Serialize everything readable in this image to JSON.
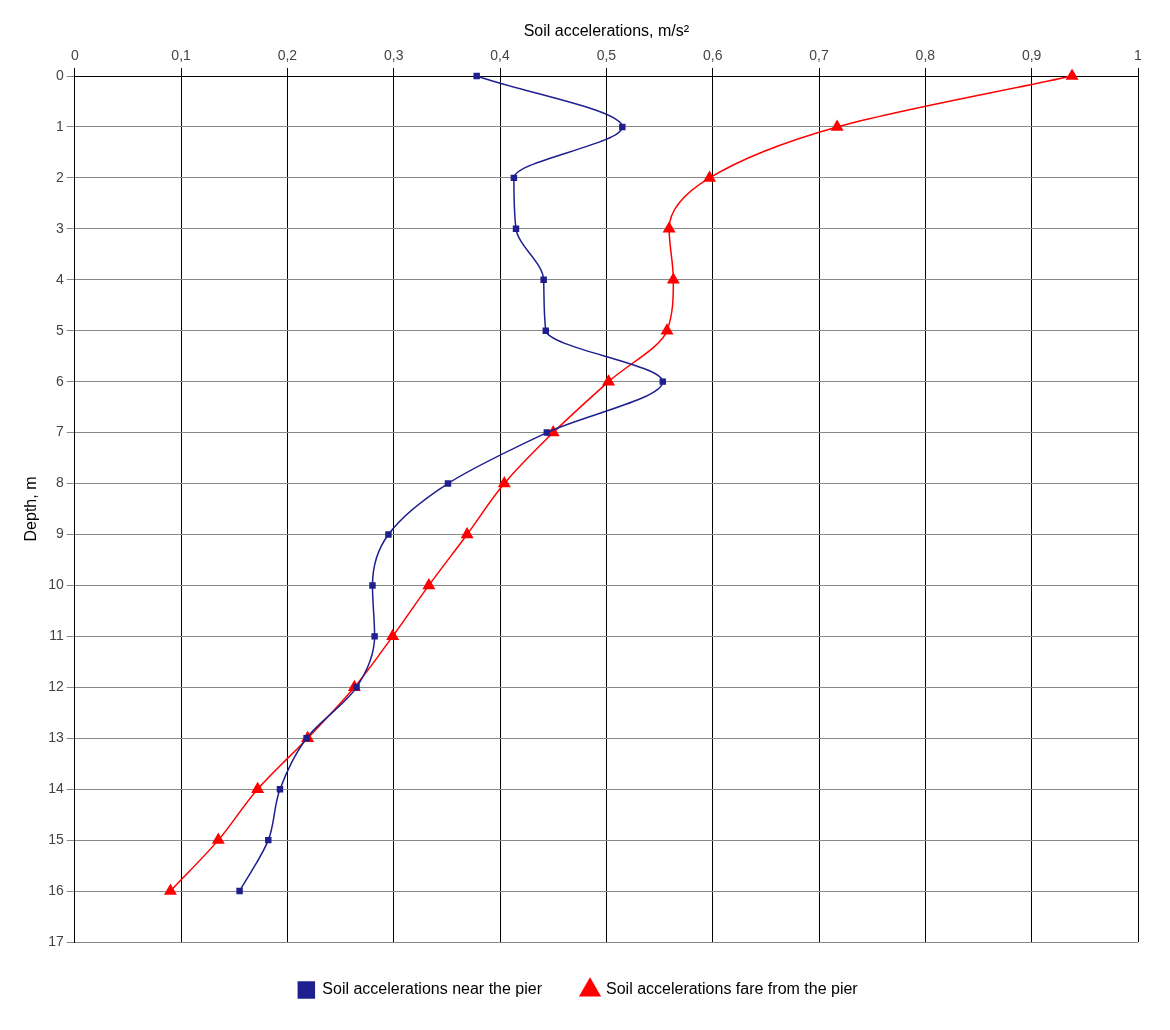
{
  "chart_data": {
    "type": "line",
    "xlabel": "Soil accelerations, m/s²",
    "ylabel": "Depth, m",
    "xlim": [
      0,
      1
    ],
    "xticks": [
      0,
      {
        "value": 0.1,
        "label": "0,1"
      },
      {
        "value": 0.2,
        "label": "0,2"
      },
      {
        "value": 0.3,
        "label": "0,3"
      },
      {
        "value": 0.4,
        "label": "0,4"
      },
      {
        "value": 0.5,
        "label": "0,5"
      },
      {
        "value": 0.6,
        "label": "0,6"
      },
      {
        "value": 0.7,
        "label": "0,7"
      },
      {
        "value": 0.8,
        "label": "0,8"
      },
      {
        "value": 0.9,
        "label": "0,9"
      },
      1
    ],
    "ylim": [
      17,
      0
    ],
    "yticks": [
      0,
      1,
      2,
      3,
      4,
      5,
      6,
      7,
      8,
      9,
      10,
      11,
      12,
      13,
      14,
      15,
      16,
      17
    ],
    "grid": true,
    "legend": "bottom",
    "series": [
      {
        "name": "Soil accelerations near the pier",
        "color": "#1f1f8f",
        "marker": "square",
        "x": [
          0.378,
          0.515,
          0.413,
          0.415,
          0.441,
          0.443,
          0.553,
          0.444,
          0.351,
          0.295,
          0.28,
          0.282,
          0.265,
          0.218,
          0.193,
          0.182,
          0.155
        ],
        "values": [
          0,
          1,
          2,
          3,
          4,
          5,
          6,
          7,
          8,
          9,
          10,
          11,
          12,
          13,
          14,
          15,
          16
        ]
      },
      {
        "name": "Soil accelerations fare from the pier",
        "color": "#ff0000",
        "marker": "triangle",
        "x": [
          0.938,
          0.717,
          0.597,
          0.559,
          0.563,
          0.557,
          0.502,
          0.45,
          0.404,
          0.369,
          0.333,
          0.299,
          0.263,
          0.219,
          0.172,
          0.135,
          0.09
        ],
        "values": [
          0,
          1,
          2,
          3,
          4,
          5,
          6,
          7,
          8,
          9,
          10,
          11,
          12,
          13,
          14,
          15,
          16
        ]
      }
    ]
  }
}
